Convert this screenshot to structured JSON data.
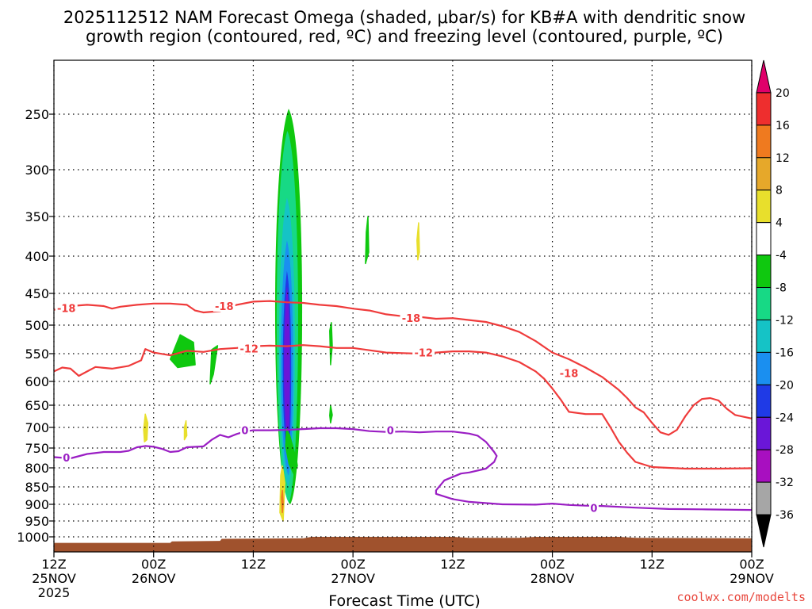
{
  "chart_data": {
    "type": "time-pressure cross-section",
    "title_line1": "2025112512 NAM Forecast Omega (shaded, μbar/s) for KB#A with dendritic snow",
    "title_line2": "growth region (contoured, red, ºC) and freezing level (contoured, purple, ºC)",
    "xlabel": "Forecast Time (UTC)",
    "ylabel": "",
    "credit": "coolwx.com/modelts",
    "x_ticks": [
      {
        "hours": 0,
        "top": "12Z",
        "mid": "25NOV",
        "bot": "2025"
      },
      {
        "hours": 12,
        "top": "00Z",
        "mid": "26NOV",
        "bot": ""
      },
      {
        "hours": 24,
        "top": "12Z",
        "mid": "",
        "bot": ""
      },
      {
        "hours": 36,
        "top": "00Z",
        "mid": "27NOV",
        "bot": ""
      },
      {
        "hours": 48,
        "top": "12Z",
        "mid": "",
        "bot": ""
      },
      {
        "hours": 60,
        "top": "00Z",
        "mid": "28NOV",
        "bot": ""
      },
      {
        "hours": 72,
        "top": "12Z",
        "mid": "",
        "bot": ""
      },
      {
        "hours": 84,
        "top": "00Z",
        "mid": "29NOV",
        "bot": ""
      }
    ],
    "pressure_levels": [
      250,
      300,
      350,
      400,
      450,
      500,
      550,
      600,
      650,
      700,
      750,
      800,
      850,
      900,
      950,
      1000
    ],
    "xlim_hours": [
      0,
      84
    ],
    "ylim_hPa": [
      200,
      1030
    ],
    "grid": true,
    "colorbar": {
      "unit": "μbar/s",
      "ticks": [
        20,
        16,
        12,
        8,
        4,
        -4,
        -8,
        -12,
        -16,
        -20,
        -24,
        -28,
        -32,
        -36
      ],
      "bins": [
        {
          "color": "#e0006a"
        },
        {
          "color": "#ee2e2e"
        },
        {
          "color": "#ef7a1f"
        },
        {
          "color": "#e6a82a"
        },
        {
          "color": "#e8df2c"
        },
        {
          "color": "#ffffff"
        },
        {
          "color": "#0fc80f"
        },
        {
          "color": "#17d985"
        },
        {
          "color": "#15c3c6"
        },
        {
          "color": "#1a8ff0"
        },
        {
          "color": "#1f3ae6"
        },
        {
          "color": "#6a16d8"
        },
        {
          "color": "#a80fc0"
        },
        {
          "color": "#a6a6a6"
        },
        {
          "color": "#000000"
        }
      ]
    },
    "series": [
      {
        "name": "-18",
        "color": "#ef3b3b",
        "points": [
          [
            0,
            476
          ],
          [
            2,
            470
          ],
          [
            4,
            468
          ],
          [
            6,
            470
          ],
          [
            7,
            474
          ],
          [
            8,
            471
          ],
          [
            10,
            468
          ],
          [
            12,
            466
          ],
          [
            14,
            466
          ],
          [
            16,
            468
          ],
          [
            17,
            477
          ],
          [
            18,
            480
          ],
          [
            20,
            478
          ],
          [
            21,
            472
          ],
          [
            22,
            468
          ],
          [
            24,
            463
          ],
          [
            26,
            462
          ],
          [
            28,
            464
          ],
          [
            30,
            465
          ],
          [
            32,
            468
          ],
          [
            34,
            470
          ],
          [
            36,
            474
          ],
          [
            38,
            477
          ],
          [
            40,
            483
          ],
          [
            42,
            486
          ],
          [
            44,
            487
          ],
          [
            46,
            490
          ],
          [
            48,
            489
          ],
          [
            50,
            492
          ],
          [
            52,
            495
          ],
          [
            54,
            502
          ],
          [
            56,
            512
          ],
          [
            58,
            528
          ],
          [
            60,
            548
          ],
          [
            62,
            560
          ],
          [
            64,
            575
          ],
          [
            66,
            592
          ],
          [
            68,
            618
          ],
          [
            69,
            635
          ],
          [
            70,
            655
          ],
          [
            71,
            666
          ],
          [
            72,
            690
          ],
          [
            73,
            712
          ],
          [
            74,
            718
          ],
          [
            75,
            706
          ],
          [
            76,
            675
          ],
          [
            77,
            650
          ],
          [
            78,
            637
          ],
          [
            79,
            635
          ],
          [
            80,
            640
          ],
          [
            81,
            658
          ],
          [
            82,
            672
          ],
          [
            84,
            680
          ]
        ],
        "labels": [
          [
            1.5,
            473
          ],
          [
            20.5,
            470
          ],
          [
            43,
            489
          ],
          [
            62,
            585
          ]
        ]
      },
      {
        "name": "-12",
        "color": "#ef3b3b",
        "points": [
          [
            0,
            582
          ],
          [
            1,
            575
          ],
          [
            2,
            577
          ],
          [
            3,
            590
          ],
          [
            4,
            582
          ],
          [
            5,
            574
          ],
          [
            7,
            577
          ],
          [
            9,
            572
          ],
          [
            10.5,
            562
          ],
          [
            11,
            542
          ],
          [
            12,
            548
          ],
          [
            14,
            553
          ],
          [
            16,
            545
          ],
          [
            18,
            547
          ],
          [
            20,
            542
          ],
          [
            22,
            540
          ],
          [
            24,
            537
          ],
          [
            26,
            536
          ],
          [
            28,
            537
          ],
          [
            30,
            535
          ],
          [
            32,
            537
          ],
          [
            34,
            540
          ],
          [
            36,
            540
          ],
          [
            38,
            544
          ],
          [
            40,
            548
          ],
          [
            42,
            549
          ],
          [
            44,
            550
          ],
          [
            46,
            548
          ],
          [
            48,
            546
          ],
          [
            50,
            546
          ],
          [
            52,
            548
          ],
          [
            54,
            555
          ],
          [
            56,
            565
          ],
          [
            58,
            582
          ],
          [
            59,
            595
          ],
          [
            60,
            615
          ],
          [
            61,
            638
          ],
          [
            62,
            665
          ],
          [
            64,
            670
          ],
          [
            66,
            670
          ],
          [
            67,
            700
          ],
          [
            68,
            735
          ],
          [
            69,
            762
          ],
          [
            70,
            785
          ],
          [
            72,
            798
          ],
          [
            76,
            802
          ],
          [
            80,
            802
          ],
          [
            84,
            801
          ]
        ],
        "labels": [
          [
            23.5,
            541
          ],
          [
            44.5,
            548
          ]
        ]
      },
      {
        "name": "0",
        "color": "#9a1ec4",
        "points": [
          [
            0,
            773
          ],
          [
            2,
            776
          ],
          [
            4,
            765
          ],
          [
            6,
            760
          ],
          [
            8,
            760
          ],
          [
            9,
            757
          ],
          [
            10,
            748
          ],
          [
            11,
            745
          ],
          [
            12,
            747
          ],
          [
            13,
            752
          ],
          [
            14,
            760
          ],
          [
            15,
            758
          ],
          [
            16,
            748
          ],
          [
            18,
            746
          ],
          [
            19,
            730
          ],
          [
            20,
            718
          ],
          [
            21,
            724
          ],
          [
            22,
            716
          ],
          [
            23,
            710
          ],
          [
            24,
            707
          ],
          [
            26,
            707
          ],
          [
            28,
            706
          ],
          [
            30,
            704
          ],
          [
            32,
            702
          ],
          [
            34,
            702
          ],
          [
            36,
            704
          ],
          [
            38,
            709
          ],
          [
            40,
            711
          ],
          [
            42,
            710
          ],
          [
            44,
            712
          ],
          [
            46,
            710
          ],
          [
            48,
            710
          ],
          [
            50,
            715
          ],
          [
            51,
            720
          ],
          [
            52,
            735
          ],
          [
            53,
            760
          ],
          [
            53.3,
            770
          ],
          [
            53,
            785
          ],
          [
            52,
            802
          ],
          [
            50,
            812
          ],
          [
            49,
            815
          ],
          [
            47,
            833
          ],
          [
            46,
            860
          ],
          [
            46,
            870
          ],
          [
            48,
            885
          ],
          [
            50,
            893
          ],
          [
            54,
            900
          ],
          [
            58,
            901
          ],
          [
            60,
            898
          ],
          [
            62,
            902
          ],
          [
            64,
            904
          ],
          [
            66,
            905
          ],
          [
            70,
            910
          ],
          [
            74,
            914
          ],
          [
            78,
            915
          ],
          [
            84,
            917
          ]
        ],
        "labels": [
          [
            1.5,
            774
          ],
          [
            23,
            707
          ],
          [
            40.5,
            707
          ],
          [
            65,
            911
          ]
        ]
      }
    ],
    "omega_cells": [
      {
        "color": "#0fc80f",
        "hours": [
          [
            18.8,
            605
          ],
          [
            19.0,
            543
          ],
          [
            19.7,
            536
          ],
          [
            19.2,
            587
          ]
        ]
      },
      {
        "color": "#0fc80f",
        "hours": [
          [
            17,
            570
          ],
          [
            16.8,
            530
          ],
          [
            15.2,
            517
          ],
          [
            14,
            560
          ],
          [
            14.9,
            575
          ]
        ]
      },
      {
        "color": "#0fc80f",
        "hours": [
          [
            29.2,
            780
          ],
          [
            28.4,
            720
          ],
          [
            28.0,
            703
          ],
          [
            27.9,
            746
          ],
          [
            28.3,
            790
          ],
          [
            28.9,
            817
          ],
          [
            29.3,
            795
          ]
        ]
      },
      {
        "color": "#0fc80f",
        "hours": [
          [
            37.6,
            370
          ],
          [
            37.8,
            350
          ],
          [
            37.9,
            395
          ],
          [
            37.5,
            410
          ]
        ]
      },
      {
        "color": "#0fc80f",
        "hours": [
          [
            33.2,
            510
          ],
          [
            33.4,
            496
          ],
          [
            33.5,
            536
          ],
          [
            33.3,
            570
          ]
        ]
      },
      {
        "color": "#0fc80f",
        "hours": [
          [
            33.2,
            673
          ],
          [
            33.3,
            650
          ],
          [
            33.5,
            672
          ],
          [
            33.3,
            690
          ]
        ]
      },
      {
        "color": "#e8df2c",
        "hours": [
          [
            10.8,
            705
          ],
          [
            11.0,
            670
          ],
          [
            11.3,
            690
          ],
          [
            11.2,
            730
          ],
          [
            10.9,
            735
          ]
        ]
      },
      {
        "color": "#e8df2c",
        "hours": [
          [
            15.7,
            700
          ],
          [
            15.9,
            685
          ],
          [
            16.0,
            720
          ],
          [
            15.7,
            730
          ]
        ]
      },
      {
        "color": "#e8df2c",
        "hours": [
          [
            43.7,
            380
          ],
          [
            43.9,
            358
          ],
          [
            44.0,
            395
          ],
          [
            43.8,
            405
          ]
        ]
      },
      {
        "color": "#e8df2c",
        "hours": [
          [
            27.3,
            820
          ],
          [
            27.5,
            795
          ],
          [
            27.8,
            840
          ],
          [
            27.6,
            950
          ],
          [
            27.2,
            925
          ]
        ]
      },
      {
        "color": "#ef7a1f",
        "hours": [
          [
            27.4,
            880
          ],
          [
            27.5,
            860
          ],
          [
            27.6,
            895
          ],
          [
            27.5,
            925
          ]
        ]
      }
    ],
    "omega_main_layers": [
      {
        "color": "#0fc80f",
        "x0": 26.2,
        "x1": 30.3,
        "top": 245,
        "bottom": 900
      },
      {
        "color": "#17d985",
        "x0": 26.5,
        "x1": 29.7,
        "top": 265,
        "bottom": 895
      },
      {
        "color": "#15c3c6",
        "x0": 26.9,
        "x1": 29.2,
        "top": 330,
        "bottom": 850
      },
      {
        "color": "#1a8ff0",
        "x0": 27.2,
        "x1": 28.9,
        "top": 380,
        "bottom": 820
      },
      {
        "color": "#1f3ae6",
        "x0": 27.5,
        "x1": 28.6,
        "top": 420,
        "bottom": 780
      },
      {
        "color": "#6a16d8",
        "x0": 27.7,
        "x1": 28.4,
        "top": 440,
        "bottom": 745
      }
    ],
    "terrain_top_hPa": [
      [
        0,
        1012
      ],
      [
        14,
        1012
      ],
      [
        14.2,
        1009
      ],
      [
        20,
        1008
      ],
      [
        20.2,
        1004
      ],
      [
        30,
        1003
      ],
      [
        31,
        1000
      ],
      [
        48,
        1000
      ],
      [
        50,
        1002
      ],
      [
        56,
        1002
      ],
      [
        58,
        1000
      ],
      [
        68,
        1000
      ],
      [
        70,
        1002
      ],
      [
        84,
        1003
      ]
    ],
    "terrain_color": "#a0522d"
  }
}
